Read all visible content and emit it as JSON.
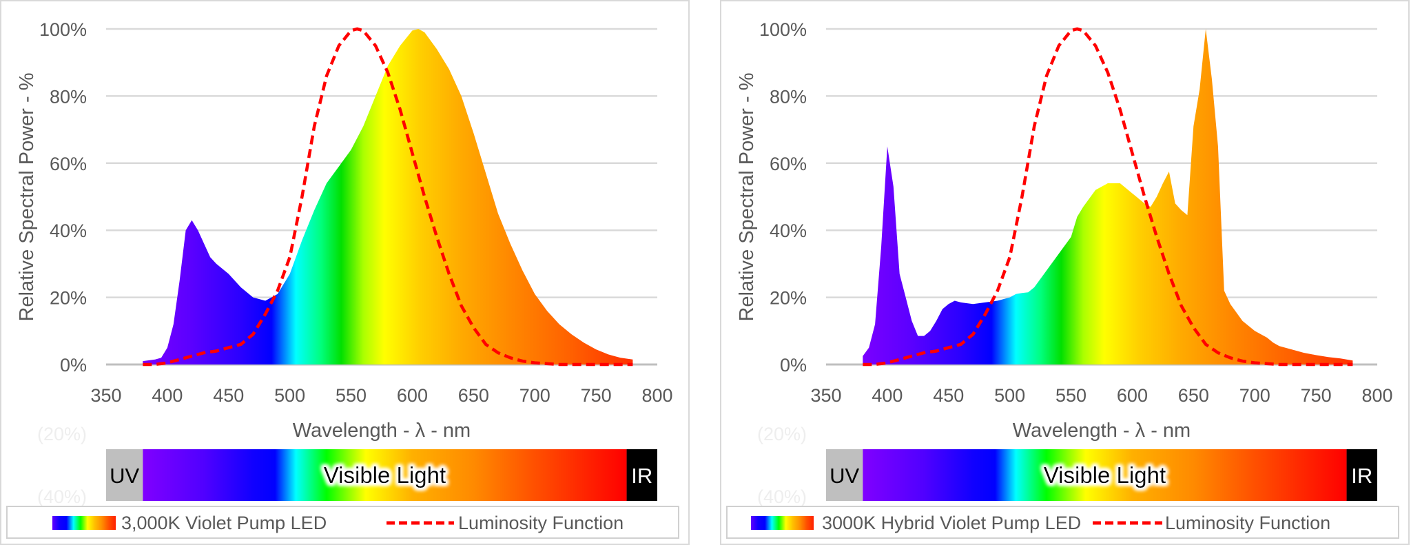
{
  "chart_data": [
    {
      "type": "area",
      "xlabel": "Wavelength - λ - nm",
      "ylabel": "Relative Spectral Power - %",
      "xlim": [
        350,
        800
      ],
      "ylim": [
        0,
        100
      ],
      "x_ticks": [
        "350",
        "400",
        "450",
        "500",
        "550",
        "600",
        "650",
        "700",
        "750",
        "800"
      ],
      "y_ticks": [
        "0%",
        "20%",
        "40%",
        "60%",
        "80%",
        "100%"
      ],
      "faint_ticks": [
        "(20%)",
        "(40%)"
      ],
      "grid": true,
      "legend_position": "bottom",
      "spectrum_bar": {
        "uv": "UV",
        "visible": "Visible Light",
        "ir": "IR"
      },
      "series": [
        {
          "name": "3,000K Violet Pump LED",
          "style": "spectrum-gradient-fill",
          "x": [
            380,
            390,
            395,
            400,
            405,
            410,
            415,
            420,
            425,
            430,
            435,
            440,
            450,
            460,
            470,
            480,
            490,
            500,
            510,
            520,
            530,
            540,
            550,
            560,
            570,
            580,
            590,
            600,
            605,
            610,
            620,
            630,
            640,
            650,
            660,
            670,
            680,
            690,
            700,
            710,
            720,
            730,
            740,
            750,
            760,
            770,
            780
          ],
          "y": [
            1,
            1.5,
            2,
            5,
            12,
            25,
            40,
            43,
            40,
            36,
            32,
            30,
            27,
            23,
            20,
            19,
            21,
            27,
            37,
            46,
            54,
            59,
            64,
            71,
            80,
            89,
            95,
            99.5,
            100,
            99,
            94,
            88,
            80,
            69,
            57,
            45,
            36,
            28,
            21,
            16,
            12,
            9,
            6.5,
            4.5,
            3,
            2,
            1.5
          ]
        },
        {
          "name": "Luminosity Function",
          "style": "dashed",
          "color": "#ff0000",
          "x": [
            380,
            390,
            400,
            410,
            420,
            430,
            440,
            450,
            460,
            470,
            480,
            490,
            500,
            510,
            520,
            530,
            540,
            550,
            555,
            560,
            570,
            580,
            590,
            600,
            610,
            620,
            630,
            640,
            650,
            660,
            670,
            680,
            690,
            700,
            720,
            740,
            760,
            780
          ],
          "y": [
            0,
            0,
            0.5,
            1.5,
            2.5,
            3.5,
            4,
            5,
            6,
            9,
            15,
            22,
            32,
            50,
            71,
            86,
            95,
            99.5,
            100,
            99.5,
            95,
            87,
            76,
            63,
            50,
            38,
            27,
            17.5,
            11,
            6,
            3.5,
            2,
            1,
            0.5,
            0,
            0,
            0,
            0
          ]
        }
      ]
    },
    {
      "type": "area",
      "xlabel": "Wavelength - λ - nm",
      "ylabel": "Relative Spectral Power - %",
      "xlim": [
        350,
        800
      ],
      "ylim": [
        0,
        100
      ],
      "x_ticks": [
        "350",
        "400",
        "450",
        "500",
        "550",
        "600",
        "650",
        "700",
        "750",
        "800"
      ],
      "y_ticks": [
        "0%",
        "20%",
        "40%",
        "60%",
        "80%",
        "100%"
      ],
      "faint_ticks": [
        "(20%)",
        "(40%)"
      ],
      "grid": true,
      "legend_position": "bottom",
      "spectrum_bar": {
        "uv": "UV",
        "visible": "Visible Light",
        "ir": "IR"
      },
      "series": [
        {
          "name": "3000K Hybrid Violet Pump LED",
          "style": "spectrum-gradient-fill",
          "x": [
            380,
            385,
            390,
            395,
            400,
            405,
            410,
            415,
            420,
            425,
            430,
            435,
            440,
            445,
            450,
            455,
            460,
            470,
            480,
            490,
            500,
            505,
            510,
            515,
            520,
            530,
            540,
            550,
            555,
            560,
            570,
            580,
            590,
            600,
            610,
            615,
            620,
            625,
            630,
            635,
            640,
            645,
            650,
            655,
            660,
            665,
            670,
            675,
            680,
            690,
            700,
            710,
            715,
            720,
            730,
            740,
            750,
            760,
            770,
            780
          ],
          "y": [
            2.5,
            5,
            12,
            35,
            65,
            53,
            27,
            20,
            13,
            8.5,
            8.5,
            10,
            13,
            16.5,
            18,
            19,
            18.5,
            18,
            18.5,
            19,
            20,
            21,
            21.3,
            21.5,
            23,
            28,
            33,
            38,
            44,
            47,
            52,
            54,
            54,
            51,
            48,
            47,
            50,
            54,
            57.5,
            48,
            46,
            44.5,
            71,
            82,
            100,
            85,
            65,
            22,
            18,
            13,
            10,
            8,
            6.5,
            5.5,
            4.5,
            3.5,
            2.8,
            2.2,
            1.8,
            1.2
          ]
        },
        {
          "name": "Luminosity Function",
          "style": "dashed",
          "color": "#ff0000",
          "x": [
            380,
            390,
            400,
            410,
            420,
            430,
            440,
            450,
            460,
            470,
            480,
            490,
            500,
            510,
            520,
            530,
            540,
            550,
            555,
            560,
            570,
            580,
            590,
            600,
            610,
            620,
            630,
            640,
            650,
            660,
            670,
            680,
            690,
            700,
            720,
            740,
            760,
            780
          ],
          "y": [
            0,
            0,
            0.5,
            1.5,
            2.5,
            3.5,
            4,
            5,
            6,
            9,
            15,
            22,
            32,
            50,
            71,
            86,
            95,
            99.5,
            100,
            99.5,
            95,
            87,
            76,
            63,
            50,
            38,
            27,
            17.5,
            11,
            6,
            3.5,
            2,
            1,
            0.5,
            0,
            0,
            0,
            0
          ]
        }
      ]
    }
  ],
  "colors": {
    "luminosity": "#ff0000",
    "grid": "#d9d9d9",
    "axis_text": "#595959",
    "uv_band": "#bfbfbf",
    "ir_band": "#000000"
  }
}
